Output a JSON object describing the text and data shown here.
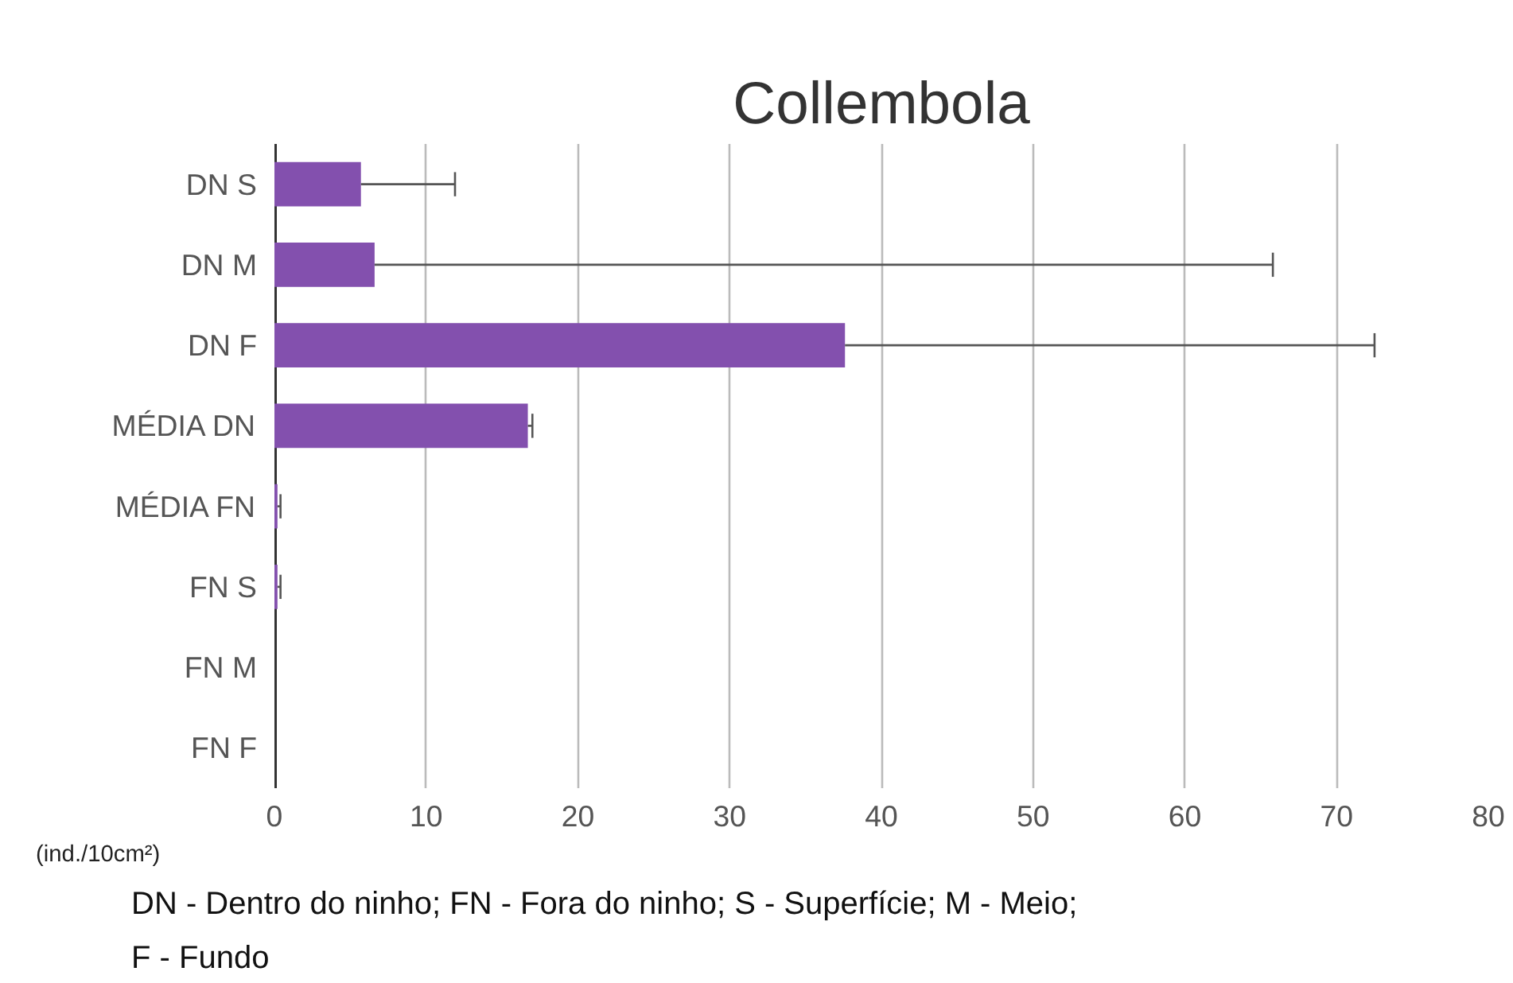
{
  "chart_data": {
    "type": "bar",
    "orientation": "horizontal",
    "title": "Collembola",
    "xlabel": "(ind./10cm²)",
    "categories": [
      "DN S",
      "DN M",
      "DN F",
      "MÉDIA DN",
      "MÉDIA FN",
      "FN S",
      "FN M",
      "FN F"
    ],
    "values": [
      5.7,
      6.6,
      37.6,
      16.7,
      0.2,
      0.2,
      0,
      0
    ],
    "errors": [
      [
        5.7,
        11.9
      ],
      [
        6.6,
        65.8
      ],
      [
        37.6,
        72.5
      ],
      [
        16.7,
        17.0
      ],
      [
        0.2,
        0.4
      ],
      [
        0.2,
        0.4
      ],
      null,
      null
    ],
    "color": "#8350ae",
    "xlim": [
      0,
      80
    ],
    "xticks": [
      0,
      10,
      20,
      30,
      40,
      50,
      60,
      70,
      80
    ],
    "grid": "x",
    "annotations": [
      "DN - Dentro do ninho; FN - Fora do ninho; S - Superfície; M - Meio; F - Fundo"
    ]
  }
}
